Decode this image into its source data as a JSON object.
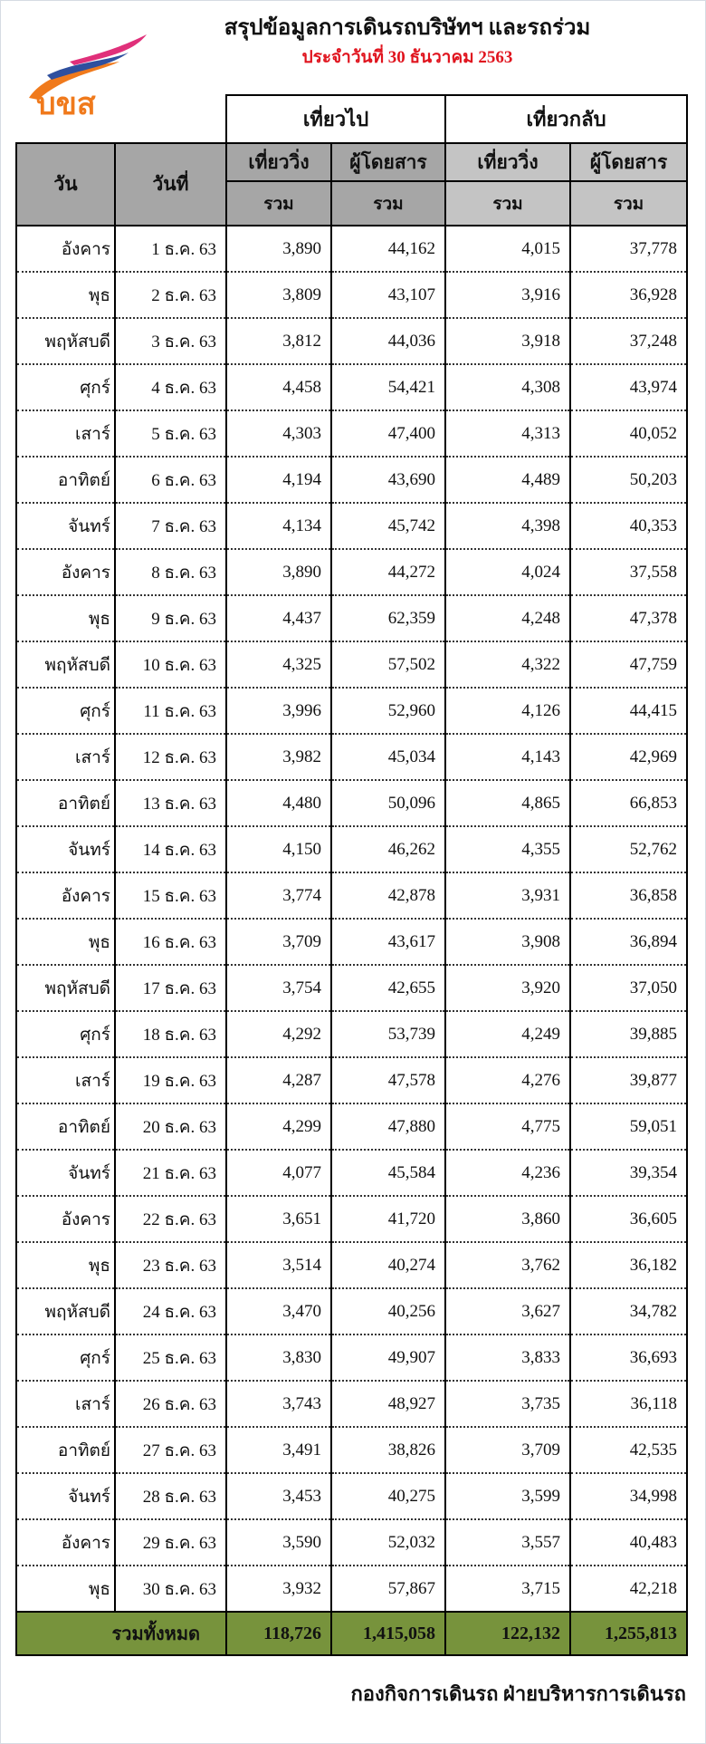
{
  "logo": {
    "text": "บขส",
    "colors": {
      "orange": "#f07a1c",
      "blue": "#2e4f9e",
      "pink": "#e0307a"
    }
  },
  "title": "สรุปข้อมูลการเดินรถบริษัทฯ และรถร่วม",
  "subtitle": "ประจำวันที่ 30 ธันวาคม 2563",
  "colors": {
    "subtitle": "#e0141e",
    "total_row": "#77933c",
    "header_dark": "#a6a6a6",
    "header_light": "#c4c4c4"
  },
  "table": {
    "group_headers": [
      "เที่ยวไป",
      "เที่ยวกลับ"
    ],
    "col_day": "วัน",
    "col_date": "วันที่",
    "sub_headers": [
      "เที่ยววิ่ง",
      "ผู้โดยสาร",
      "เที่ยววิ่ง",
      "ผู้โดยสาร"
    ],
    "sum_labels": [
      "รวม",
      "รวม",
      "รวม",
      "รวม"
    ],
    "rows": [
      [
        "อังคาร",
        "1 ธ.ค. 63",
        "3,890",
        "44,162",
        "4,015",
        "37,778"
      ],
      [
        "พุธ",
        "2 ธ.ค. 63",
        "3,809",
        "43,107",
        "3,916",
        "36,928"
      ],
      [
        "พฤหัสบดี",
        "3 ธ.ค. 63",
        "3,812",
        "44,036",
        "3,918",
        "37,248"
      ],
      [
        "ศุกร์",
        "4 ธ.ค. 63",
        "4,458",
        "54,421",
        "4,308",
        "43,974"
      ],
      [
        "เสาร์",
        "5 ธ.ค. 63",
        "4,303",
        "47,400",
        "4,313",
        "40,052"
      ],
      [
        "อาทิตย์",
        "6 ธ.ค. 63",
        "4,194",
        "43,690",
        "4,489",
        "50,203"
      ],
      [
        "จันทร์",
        "7 ธ.ค. 63",
        "4,134",
        "45,742",
        "4,398",
        "40,353"
      ],
      [
        "อังคาร",
        "8 ธ.ค. 63",
        "3,890",
        "44,272",
        "4,024",
        "37,558"
      ],
      [
        "พุธ",
        "9 ธ.ค. 63",
        "4,437",
        "62,359",
        "4,248",
        "47,378"
      ],
      [
        "พฤหัสบดี",
        "10 ธ.ค. 63",
        "4,325",
        "57,502",
        "4,322",
        "47,759"
      ],
      [
        "ศุกร์",
        "11 ธ.ค. 63",
        "3,996",
        "52,960",
        "4,126",
        "44,415"
      ],
      [
        "เสาร์",
        "12 ธ.ค. 63",
        "3,982",
        "45,034",
        "4,143",
        "42,969"
      ],
      [
        "อาทิตย์",
        "13 ธ.ค. 63",
        "4,480",
        "50,096",
        "4,865",
        "66,853"
      ],
      [
        "จันทร์",
        "14 ธ.ค. 63",
        "4,150",
        "46,262",
        "4,355",
        "52,762"
      ],
      [
        "อังคาร",
        "15 ธ.ค. 63",
        "3,774",
        "42,878",
        "3,931",
        "36,858"
      ],
      [
        "พุธ",
        "16 ธ.ค. 63",
        "3,709",
        "43,617",
        "3,908",
        "36,894"
      ],
      [
        "พฤหัสบดี",
        "17 ธ.ค. 63",
        "3,754",
        "42,655",
        "3,920",
        "37,050"
      ],
      [
        "ศุกร์",
        "18 ธ.ค. 63",
        "4,292",
        "53,739",
        "4,249",
        "39,885"
      ],
      [
        "เสาร์",
        "19 ธ.ค. 63",
        "4,287",
        "47,578",
        "4,276",
        "39,877"
      ],
      [
        "อาทิตย์",
        "20 ธ.ค. 63",
        "4,299",
        "47,880",
        "4,775",
        "59,051"
      ],
      [
        "จันทร์",
        "21 ธ.ค. 63",
        "4,077",
        "45,584",
        "4,236",
        "39,354"
      ],
      [
        "อังคาร",
        "22 ธ.ค. 63",
        "3,651",
        "41,720",
        "3,860",
        "36,605"
      ],
      [
        "พุธ",
        "23 ธ.ค. 63",
        "3,514",
        "40,274",
        "3,762",
        "36,182"
      ],
      [
        "พฤหัสบดี",
        "24 ธ.ค. 63",
        "3,470",
        "40,256",
        "3,627",
        "34,782"
      ],
      [
        "ศุกร์",
        "25 ธ.ค. 63",
        "3,830",
        "49,907",
        "3,833",
        "36,693"
      ],
      [
        "เสาร์",
        "26 ธ.ค. 63",
        "3,743",
        "48,927",
        "3,735",
        "36,118"
      ],
      [
        "อาทิตย์",
        "27 ธ.ค. 63",
        "3,491",
        "38,826",
        "3,709",
        "42,535"
      ],
      [
        "จันทร์",
        "28 ธ.ค. 63",
        "3,453",
        "40,275",
        "3,599",
        "34,998"
      ],
      [
        "อังคาร",
        "29 ธ.ค. 63",
        "3,590",
        "52,032",
        "3,557",
        "40,483"
      ],
      [
        "พุธ",
        "30 ธ.ค. 63",
        "3,932",
        "57,867",
        "3,715",
        "42,218"
      ]
    ],
    "total": {
      "label": "รวมทั้งหมด",
      "values": [
        "118,726",
        "1,415,058",
        "122,132",
        "1,255,813"
      ]
    }
  },
  "footer": "กองกิจการเดินรถ ฝ่ายบริหารการเดินรถ"
}
